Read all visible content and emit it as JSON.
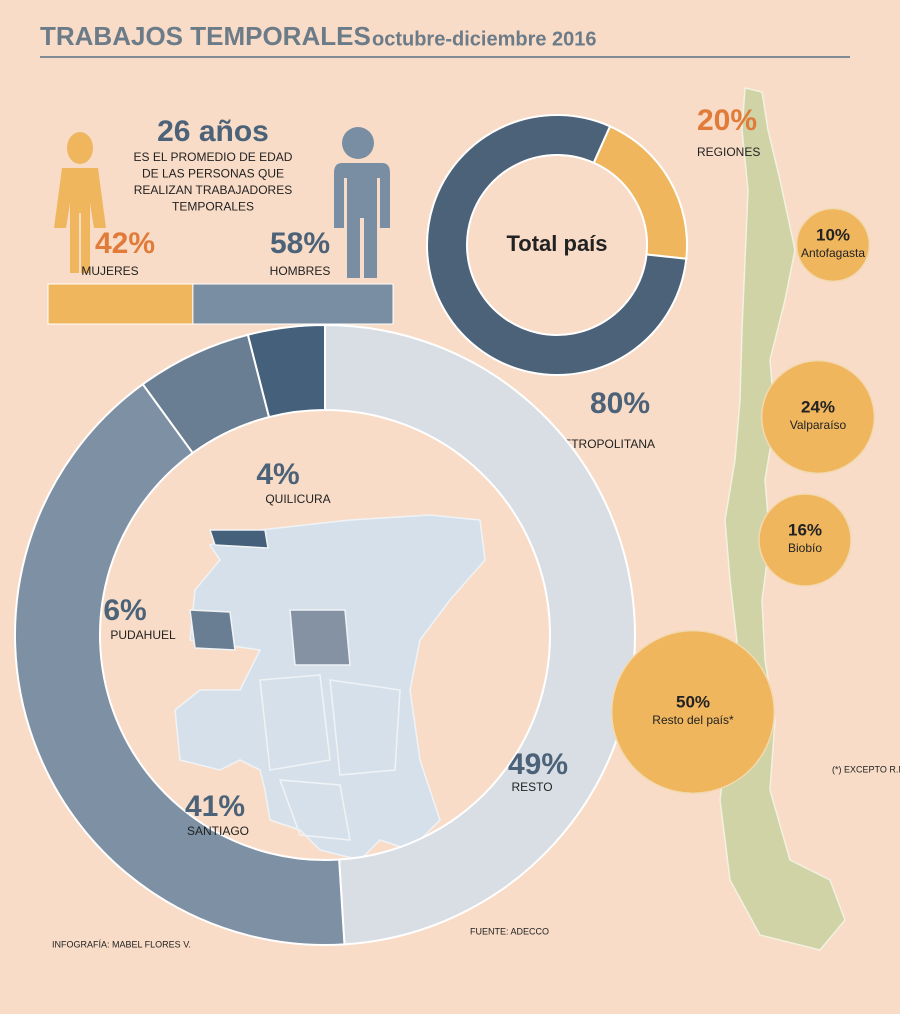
{
  "title": "TRABAJOS TEMPORALES",
  "subtitle": "octubre-diciembre 2016",
  "chart_data": [
    {
      "type": "stacked-bar",
      "headline": "26 años",
      "note_lines": [
        "ES EL PROMEDIO DE EDAD",
        "DE LAS PERSONAS QUE",
        "REALIZAN TRABAJADORES",
        "TEMPORALES"
      ],
      "categories": [
        "MUJERES",
        "HOMBRES"
      ],
      "values": [
        42,
        58
      ],
      "value_labels": [
        "42%",
        "58%"
      ],
      "colors": [
        "#efb65e",
        "#7a8ea3"
      ]
    },
    {
      "type": "donut",
      "center_label": "Total país",
      "categories": [
        "REGIONES",
        "REGIÓN METROPOLITANA"
      ],
      "values": [
        20,
        80
      ],
      "value_labels": [
        "20%",
        "80%"
      ],
      "colors": [
        "#efb65e",
        "#4b6279"
      ]
    },
    {
      "type": "donut",
      "categories": [
        "RESTO",
        "SANTIAGO",
        "PUDAHUEL",
        "QUILICURA"
      ],
      "values": [
        49,
        41,
        6,
        4
      ],
      "value_labels": [
        "49%",
        "41%",
        "6%",
        "4%"
      ],
      "colors": [
        "#d9dee4",
        "#7d90a4",
        "#6a7e93",
        "#45607a"
      ]
    },
    {
      "type": "bubble",
      "categories": [
        "Antofagasta",
        "Valparaíso",
        "Biobío",
        "Resto del país*"
      ],
      "values": [
        10,
        24,
        16,
        50
      ],
      "value_labels": [
        "10%",
        "24%",
        "16%",
        "50%"
      ],
      "color": "#efb65e"
    }
  ],
  "footnote": "(*) EXCEPTO R.M.",
  "source": "FUENTE: ADECCO",
  "credit": "INFOGRAFÍA: MABEL FLORES V."
}
